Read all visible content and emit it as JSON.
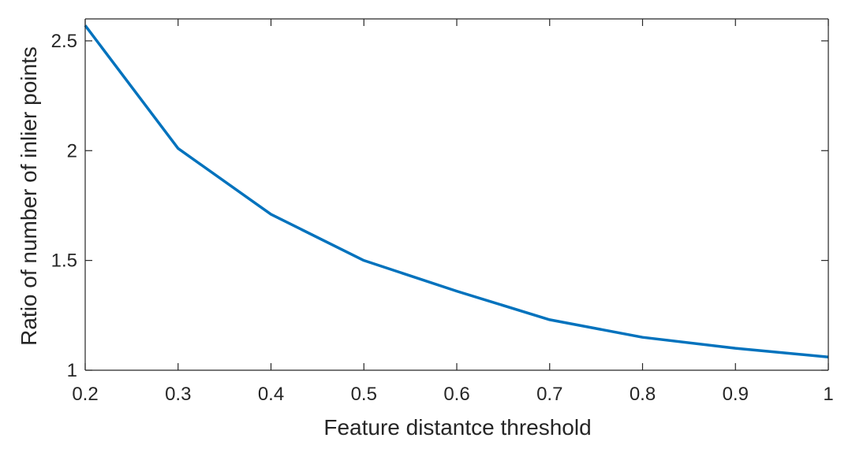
{
  "chart_data": {
    "type": "line",
    "title": "",
    "xlabel": "Feature distantce threshold",
    "ylabel": "Ratio of number of inlier points",
    "xlim": [
      0.2,
      1
    ],
    "ylim": [
      1,
      2.6
    ],
    "x_ticks": [
      0.2,
      0.3,
      0.4,
      0.5,
      0.6,
      0.7,
      0.8,
      0.9,
      1
    ],
    "x_tick_labels": [
      "0.2",
      "0.3",
      "0.4",
      "0.5",
      "0.6",
      "0.7",
      "0.8",
      "0.9",
      "1"
    ],
    "y_ticks": [
      1,
      1.5,
      2,
      2.5
    ],
    "y_tick_labels": [
      "1",
      "1.5",
      "2",
      "2.5"
    ],
    "grid": false,
    "series": [
      {
        "color": "#0072BD",
        "x": [
          0.2,
          0.3,
          0.4,
          0.5,
          0.6,
          0.7,
          0.8,
          0.9,
          1.0
        ],
        "y": [
          2.57,
          2.01,
          1.71,
          1.5,
          1.36,
          1.23,
          1.15,
          1.1,
          1.06
        ]
      }
    ]
  }
}
